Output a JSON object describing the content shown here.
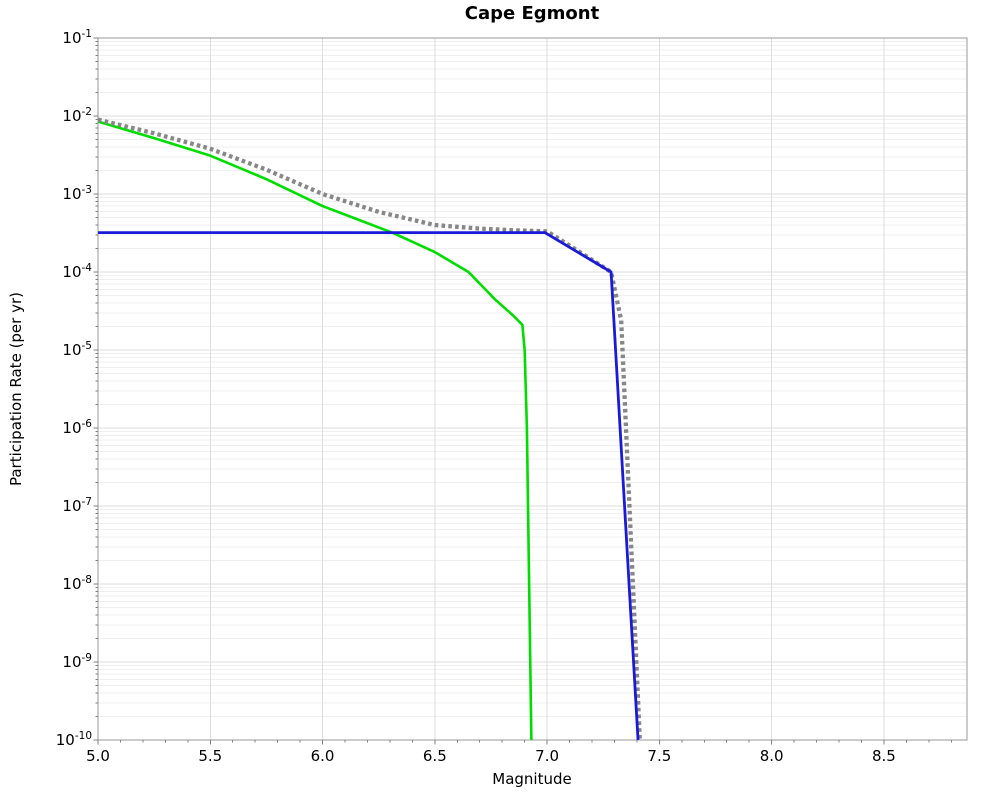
{
  "chart_data": {
    "type": "line",
    "title": "Cape Egmont",
    "xlabel": "Magnitude",
    "ylabel": "Participation Rate (per yr)",
    "x_scale": "linear",
    "y_scale": "log",
    "xlim": [
      5.0,
      8.87
    ],
    "y_exponent_range": [
      -1,
      -10
    ],
    "grid": {
      "horizontal": "major+minor",
      "vertical": "major"
    },
    "legend_position": "none",
    "x_ticks": [
      "5.0",
      "5.5",
      "6.0",
      "6.5",
      "7.0",
      "7.5",
      "8.0",
      "8.5"
    ],
    "x_minor_tick_step": 0.1,
    "y_tick_base": "10",
    "y_tick_exponents": [
      -1,
      -2,
      -3,
      -4,
      -5,
      -6,
      -7,
      -8,
      -9,
      -10
    ],
    "colors": {
      "grid_major": "#dedede",
      "grid_minor": "#efefef",
      "spine": "#9a9a9a",
      "tick": "#808080",
      "green_line": "#00dd00",
      "gray_dotted": "#878787",
      "blue_line": "#1a1ad9"
    },
    "series": [
      {
        "id": "green-solid-curve",
        "color": "#00dd00",
        "style": "solid",
        "width": 2.6,
        "points": [
          [
            5.0,
            0.0085
          ],
          [
            5.25,
            0.0052
          ],
          [
            5.5,
            0.0031
          ],
          [
            5.75,
            0.00155
          ],
          [
            6.0,
            0.0007
          ],
          [
            6.15,
            0.00048
          ],
          [
            6.31,
            0.00032
          ],
          [
            6.5,
            0.00018
          ],
          [
            6.65,
            0.0001
          ],
          [
            6.77,
            4.4e-05
          ],
          [
            6.85,
            2.75e-05
          ],
          [
            6.89,
            2.1e-05
          ],
          [
            6.9,
            1e-05
          ],
          [
            6.91,
            1e-06
          ],
          [
            6.92,
            1e-08
          ],
          [
            6.93,
            1e-10
          ]
        ]
      },
      {
        "id": "gray-dotted-curve",
        "color": "#878787",
        "style": "dotted",
        "width": 4.3,
        "points": [
          [
            5.0,
            0.009
          ],
          [
            5.25,
            0.006
          ],
          [
            5.5,
            0.0038
          ],
          [
            5.75,
            0.00205
          ],
          [
            6.0,
            0.001
          ],
          [
            6.25,
            0.00059
          ],
          [
            6.5,
            0.0004
          ],
          [
            6.7,
            0.00036
          ],
          [
            6.85,
            0.000343
          ],
          [
            7.0,
            0.000332
          ],
          [
            7.285,
            0.0001
          ],
          [
            7.33,
            2.4e-05
          ],
          [
            7.413,
            1e-10
          ]
        ]
      },
      {
        "id": "blue-solid-line",
        "color": "#1a1ad9",
        "style": "solid",
        "width": 2.8,
        "points": [
          [
            5.0,
            0.00032
          ],
          [
            6.99,
            0.00032
          ],
          [
            7.285,
            0.0001
          ],
          [
            7.405,
            1e-10
          ]
        ]
      }
    ]
  }
}
